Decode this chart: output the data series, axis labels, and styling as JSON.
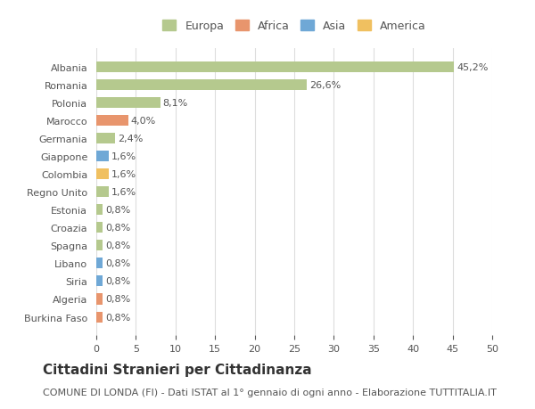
{
  "countries": [
    "Albania",
    "Romania",
    "Polonia",
    "Marocco",
    "Germania",
    "Giappone",
    "Colombia",
    "Regno Unito",
    "Estonia",
    "Croazia",
    "Spagna",
    "Libano",
    "Siria",
    "Algeria",
    "Burkina Faso"
  ],
  "values": [
    45.2,
    26.6,
    8.1,
    4.0,
    2.4,
    1.6,
    1.6,
    1.6,
    0.8,
    0.8,
    0.8,
    0.8,
    0.8,
    0.8,
    0.8
  ],
  "labels": [
    "45,2%",
    "26,6%",
    "8,1%",
    "4,0%",
    "2,4%",
    "1,6%",
    "1,6%",
    "1,6%",
    "0,8%",
    "0,8%",
    "0,8%",
    "0,8%",
    "0,8%",
    "0,8%",
    "0,8%"
  ],
  "continents": [
    "Europa",
    "Europa",
    "Europa",
    "Africa",
    "Europa",
    "Asia",
    "America",
    "Europa",
    "Europa",
    "Europa",
    "Europa",
    "Asia",
    "Asia",
    "Africa",
    "Africa"
  ],
  "continent_colors": {
    "Europa": "#b5c98e",
    "Africa": "#e8956d",
    "Asia": "#6fa8d6",
    "America": "#f0c060"
  },
  "legend_order": [
    "Europa",
    "Africa",
    "Asia",
    "America"
  ],
  "xlim": [
    0,
    50
  ],
  "xticks": [
    0,
    5,
    10,
    15,
    20,
    25,
    30,
    35,
    40,
    45,
    50
  ],
  "title": "Cittadini Stranieri per Cittadinanza",
  "subtitle": "COMUNE DI LONDA (FI) - Dati ISTAT al 1° gennaio di ogni anno - Elaborazione TUTTITALIA.IT",
  "bg_color": "#ffffff",
  "grid_color": "#dddddd",
  "bar_height": 0.6,
  "label_fontsize": 8,
  "tick_fontsize": 8,
  "title_fontsize": 11,
  "subtitle_fontsize": 8
}
